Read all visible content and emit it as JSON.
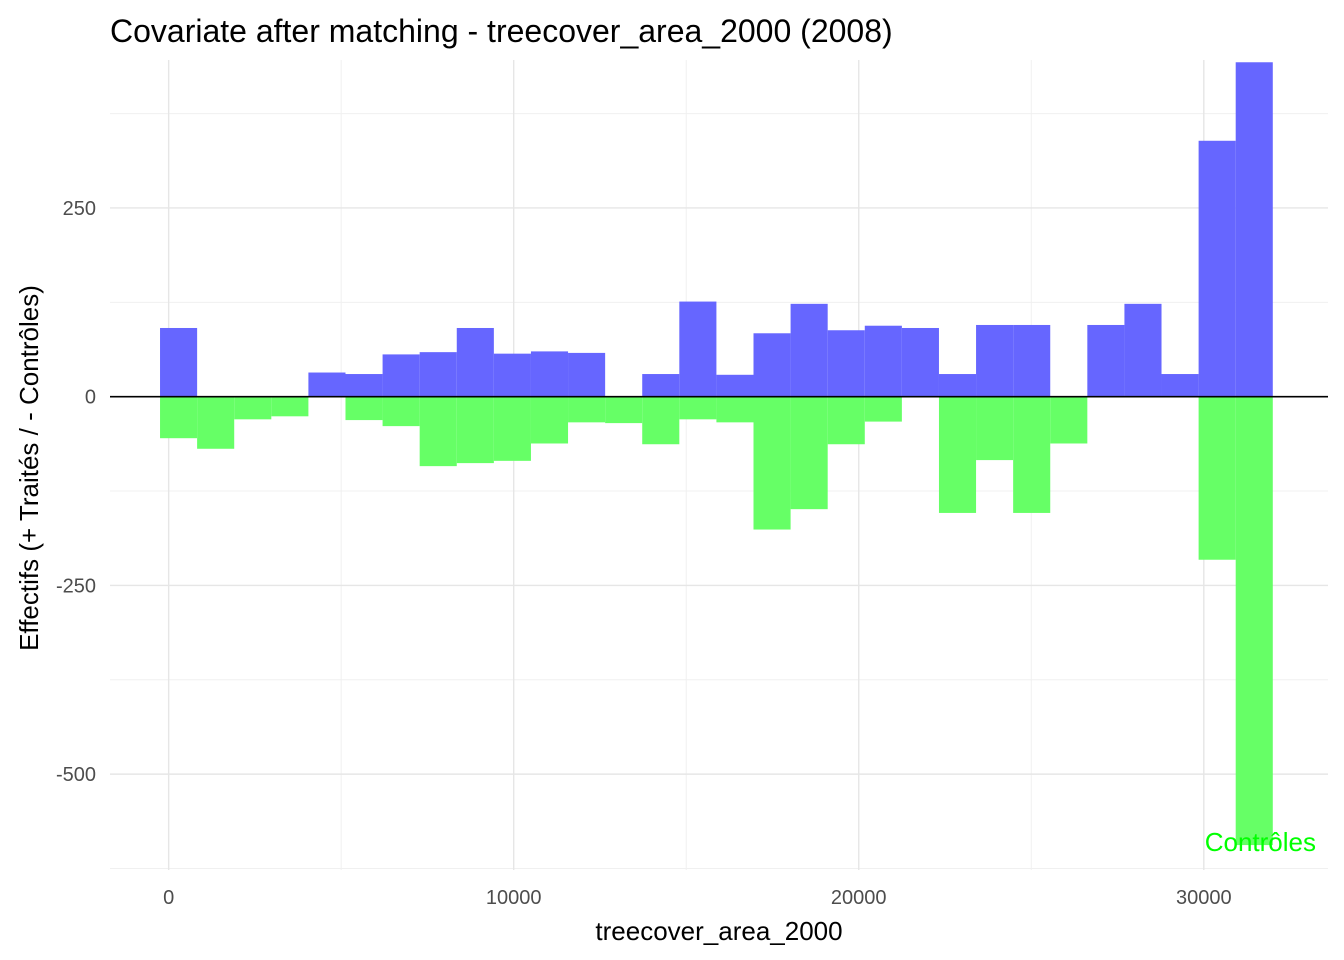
{
  "chart_data": {
    "type": "bar",
    "title": "Covariate after matching - treecover_area_2000 (2008)",
    "xlabel": "treecover_area_2000",
    "ylabel": "Effectifs (+ Traités / - Contrôles)",
    "xlim": [
      -1700,
      33600
    ],
    "ylim": [
      -627,
      446
    ],
    "x_ticks": [
      0,
      10000,
      20000,
      30000
    ],
    "x_tick_labels": [
      "0",
      "10000",
      "20000",
      "30000"
    ],
    "y_ticks": [
      250,
      0,
      -250,
      -500
    ],
    "y_tick_labels": [
      "250",
      "0",
      "-250",
      "-500"
    ],
    "grid": true,
    "bin_width": 1075,
    "bin_starts": [
      -250,
      825,
      1900,
      2975,
      4050,
      5125,
      6200,
      7275,
      8350,
      9425,
      10500,
      11575,
      12650,
      13725,
      14800,
      15875,
      16950,
      18025,
      19100,
      20175,
      21250,
      22325,
      23400,
      24475,
      25550,
      26625,
      27700,
      28775,
      29850,
      30925
    ],
    "series": [
      {
        "name": "Traités",
        "color": "#6666ff",
        "values": [
          91,
          0,
          0,
          0,
          32,
          30,
          56,
          59,
          91,
          57,
          60,
          58,
          0,
          30,
          126,
          29,
          84,
          123,
          88,
          94,
          91,
          30,
          95,
          95,
          0,
          95,
          123,
          30,
          339,
          443
        ]
      },
      {
        "name": "Contrôles",
        "color": "#66ff66",
        "values": [
          -55,
          -69,
          -30,
          -26,
          0,
          -31,
          -39,
          -92,
          -88,
          -85,
          -62,
          -34,
          -35,
          -63,
          -30,
          -34,
          -176,
          -149,
          -63,
          -33,
          0,
          -154,
          -84,
          -154,
          -62,
          0,
          0,
          0,
          -216,
          -594
        ]
      }
    ],
    "annotations": [
      {
        "text": "Contrôles",
        "color": "#00ff00"
      }
    ]
  }
}
